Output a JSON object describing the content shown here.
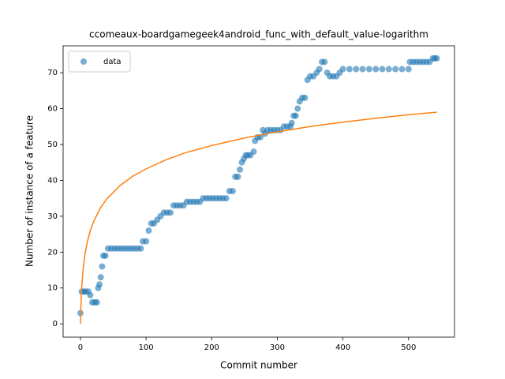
{
  "chart_data": {
    "type": "scatter",
    "title": "ccomeaux-boardgamegeek4android_func_with_default_value-logarithm",
    "xlabel": "Commit number",
    "ylabel": "Number of instance of a feature",
    "xlim": [
      -26.4,
      570
    ],
    "ylim": [
      -3.7,
      77.5
    ],
    "xticks": [
      0,
      100,
      200,
      300,
      400,
      500
    ],
    "yticks": [
      0,
      10,
      20,
      30,
      40,
      50,
      60,
      70
    ],
    "legend": "upper left",
    "series": [
      {
        "name": "data",
        "type": "scatter",
        "color": "#1f77b4",
        "opacity": 0.6,
        "x": [
          0,
          2,
          5,
          8,
          12,
          15,
          18,
          22,
          25,
          27,
          29,
          31,
          33,
          35,
          38,
          42,
          47,
          52,
          57,
          62,
          67,
          72,
          77,
          82,
          87,
          92,
          95,
          100,
          104,
          108,
          112,
          117,
          122,
          127,
          132,
          137,
          142,
          147,
          152,
          157,
          162,
          167,
          172,
          177,
          182,
          187,
          192,
          197,
          202,
          207,
          212,
          217,
          222,
          227,
          232,
          236,
          240,
          243,
          246,
          249,
          252,
          255,
          259,
          264,
          266,
          270,
          274,
          278,
          281,
          285,
          290,
          295,
          300,
          305,
          310,
          315,
          320,
          322,
          325,
          328,
          331,
          334,
          338,
          342,
          346,
          350,
          355,
          360,
          364,
          368,
          372,
          376,
          380,
          385,
          390,
          395,
          400,
          410,
          420,
          430,
          440,
          450,
          460,
          470,
          480,
          490,
          500,
          502,
          507,
          512,
          517,
          522,
          527,
          532,
          537,
          540,
          543
        ],
        "values": [
          3,
          9,
          9,
          9,
          9,
          8,
          6,
          6,
          6,
          10,
          11,
          13,
          16,
          19,
          19,
          21,
          21,
          21,
          21,
          21,
          21,
          21,
          21,
          21,
          21,
          21,
          23,
          23,
          26,
          28,
          28,
          29,
          30,
          31,
          31,
          31,
          33,
          33,
          33,
          33,
          34,
          34,
          34,
          34,
          34,
          35,
          35,
          35,
          35,
          35,
          35,
          35,
          35,
          37,
          37,
          41,
          41,
          43,
          45,
          46,
          47,
          47,
          47,
          48,
          51,
          52,
          52,
          54,
          53,
          54,
          54,
          54,
          54,
          54,
          55,
          55,
          55,
          56,
          58,
          58,
          60,
          62,
          63,
          63,
          68,
          69,
          69,
          70,
          71,
          73,
          73,
          70,
          69,
          69,
          69,
          70,
          71,
          71,
          71,
          71,
          71,
          71,
          71,
          71,
          71,
          71,
          71,
          73,
          73,
          73,
          73,
          73,
          73,
          73,
          74,
          74,
          74
        ]
      },
      {
        "type": "line",
        "color": "#ff7f0e",
        "x": [
          0,
          1,
          2,
          4,
          7,
          10,
          15,
          20,
          30,
          40,
          60,
          80,
          100,
          130,
          160,
          200,
          250,
          300,
          350,
          400,
          450,
          500,
          543
        ],
        "values": [
          0,
          6.5,
          10.3,
          15.1,
          19.5,
          22.5,
          26.0,
          28.5,
          32.2,
          34.8,
          38.5,
          41.2,
          43.2,
          45.7,
          47.7,
          49.7,
          51.8,
          53.5,
          55.0,
          56.2,
          57.3,
          58.3,
          59.0
        ]
      }
    ]
  }
}
